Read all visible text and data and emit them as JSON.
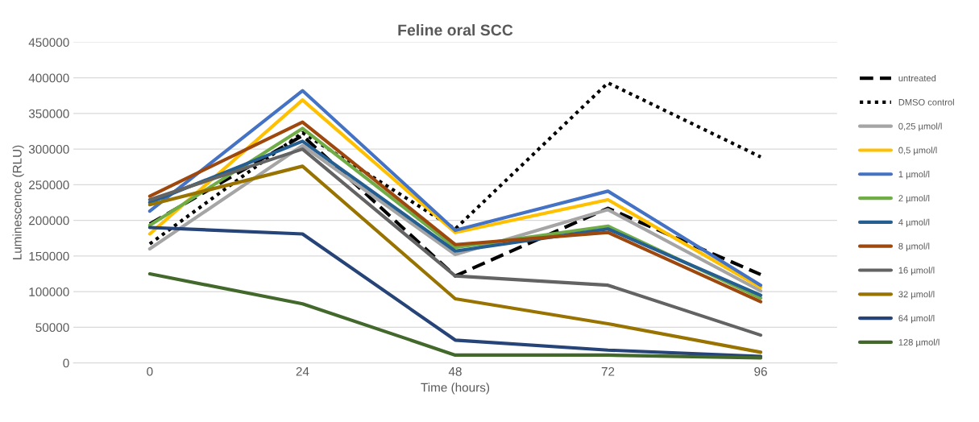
{
  "chart_data": {
    "type": "line",
    "title": "Feline oral SCC",
    "xlabel": "Time (hours)",
    "ylabel": "Luminescence (RLU)",
    "categories": [
      "0",
      "24",
      "48",
      "72",
      "96"
    ],
    "ylim": [
      0,
      450000
    ],
    "yticks": [
      0,
      50000,
      100000,
      150000,
      200000,
      250000,
      300000,
      350000,
      400000,
      450000
    ],
    "grid": "y",
    "legend": "right",
    "marker": "none",
    "series": [
      {
        "name": "untreated",
        "color": "#000000",
        "line_style": "dashed",
        "values": [
          195000,
          319000,
          122000,
          217000,
          124000
        ]
      },
      {
        "name": "DMSO control",
        "color": "#000000",
        "line_style": "dotted",
        "values": [
          167000,
          323000,
          188000,
          393000,
          289000
        ]
      },
      {
        "name": "0,25 µmol/l",
        "color": "#a5a5a5",
        "values": [
          160000,
          305000,
          152000,
          215000,
          101000
        ]
      },
      {
        "name": "0,5 µmol/l",
        "color": "#ffc000",
        "values": [
          181000,
          369000,
          183000,
          229000,
          106000
        ]
      },
      {
        "name": "1 µmol/l",
        "color": "#4472c4",
        "values": [
          213000,
          382000,
          186000,
          241000,
          109000
        ]
      },
      {
        "name": "2 µmol/l",
        "color": "#70ad47",
        "values": [
          193000,
          329000,
          162000,
          192000,
          91000
        ]
      },
      {
        "name": "4 µmol/l",
        "color": "#255e91",
        "values": [
          225000,
          311000,
          157000,
          188000,
          95000
        ]
      },
      {
        "name": "8 µmol/l",
        "color": "#9e480e",
        "values": [
          234000,
          338000,
          166000,
          183000,
          86000
        ]
      },
      {
        "name": "16 µmol/l",
        "color": "#636363",
        "values": [
          229000,
          300000,
          122000,
          109000,
          39000
        ]
      },
      {
        "name": "32 µmol/l",
        "color": "#997300",
        "values": [
          222000,
          276000,
          90000,
          55000,
          15000
        ]
      },
      {
        "name": "64 µmol/l",
        "color": "#264478",
        "values": [
          190000,
          181000,
          32000,
          18000,
          9000
        ]
      },
      {
        "name": "128 µmol/l",
        "color": "#43682b",
        "values": [
          125000,
          83000,
          11000,
          11000,
          7000
        ]
      }
    ]
  }
}
